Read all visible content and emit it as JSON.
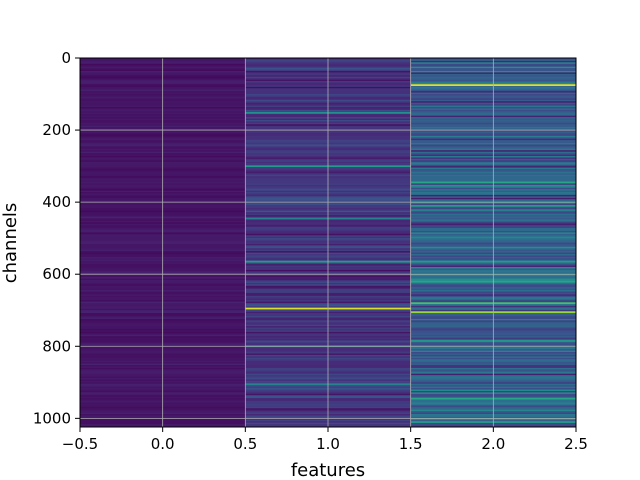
{
  "chart_data": {
    "type": "heatmap",
    "xlabel": "features",
    "ylabel": "channels",
    "xlim": [
      -0.5,
      2.5
    ],
    "ylim": [
      1024,
      0
    ],
    "y_inverted": true,
    "xticks": [
      -0.5,
      0.0,
      0.5,
      1.0,
      1.5,
      2.0,
      2.5
    ],
    "xtick_labels": [
      "−0.5",
      "0.0",
      "0.5",
      "1.0",
      "1.5",
      "2.0",
      "2.5"
    ],
    "yticks": [
      0,
      200,
      400,
      600,
      800,
      1000
    ],
    "ytick_labels": [
      "0",
      "200",
      "400",
      "600",
      "800",
      "1000"
    ],
    "grid": true,
    "colormap": "viridis",
    "colors": {
      "grid": "#b0b0b0",
      "axis": "#000000",
      "background": "#ffffff"
    },
    "columns": [
      {
        "feature": 0,
        "base_value": 0.06,
        "highlights": []
      },
      {
        "feature": 1,
        "base_value": 0.16,
        "highlights": [
          {
            "channel": 152,
            "value": 0.5
          },
          {
            "channel": 300,
            "value": 0.55
          },
          {
            "channel": 445,
            "value": 0.45
          },
          {
            "channel": 565,
            "value": 0.55
          },
          {
            "channel": 695,
            "value": 0.95
          },
          {
            "channel": 800,
            "value": 0.45
          },
          {
            "channel": 905,
            "value": 0.45
          }
        ]
      },
      {
        "feature": 2,
        "base_value": 0.3,
        "highlights": [
          {
            "channel": 75,
            "value": 0.95
          },
          {
            "channel": 345,
            "value": 0.6
          },
          {
            "channel": 410,
            "value": 0.55
          },
          {
            "channel": 565,
            "value": 0.55
          },
          {
            "channel": 620,
            "value": 0.6
          },
          {
            "channel": 680,
            "value": 0.7
          },
          {
            "channel": 705,
            "value": 0.85
          },
          {
            "channel": 785,
            "value": 0.55
          },
          {
            "channel": 945,
            "value": 0.6
          },
          {
            "channel": 1010,
            "value": 0.55
          }
        ]
      }
    ]
  }
}
